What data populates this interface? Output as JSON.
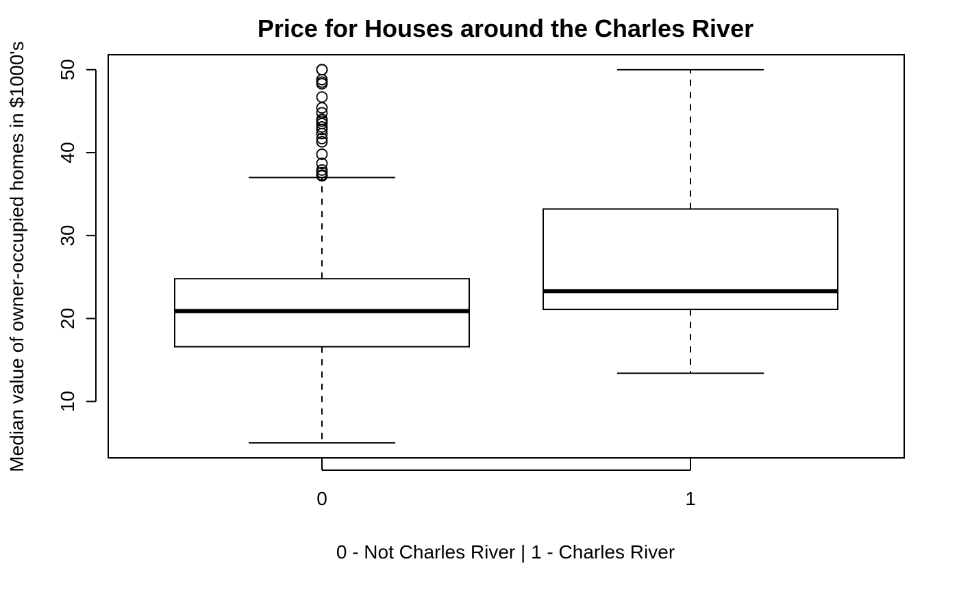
{
  "chart_data": {
    "type": "box",
    "title": "Price for Houses around the Charles River",
    "xlabel": "0 - Not Charles River | 1 - Charles River",
    "ylabel": "Median value of owner-occupied homes in $1000's",
    "categories": [
      "0",
      "1"
    ],
    "yticks": [
      10,
      20,
      30,
      40,
      50
    ],
    "ylim": [
      3.2,
      51.8
    ],
    "grid": false,
    "boxes": [
      {
        "category": "0",
        "whisker_low": 5.0,
        "q1": 16.6,
        "median": 20.9,
        "q3": 24.8,
        "whisker_high": 37.0,
        "outliers": [
          37.2,
          37.3,
          37.6,
          37.9,
          38.7,
          39.8,
          41.3,
          41.7,
          42.3,
          42.8,
          43.1,
          43.5,
          43.8,
          44.0,
          44.8,
          45.4,
          46.7,
          48.3,
          48.5,
          48.8,
          50.0,
          50.0,
          50.0
        ]
      },
      {
        "category": "1",
        "whisker_low": 13.4,
        "q1": 21.1,
        "median": 23.3,
        "q3": 33.2,
        "whisker_high": 50.0,
        "outliers": []
      }
    ]
  }
}
